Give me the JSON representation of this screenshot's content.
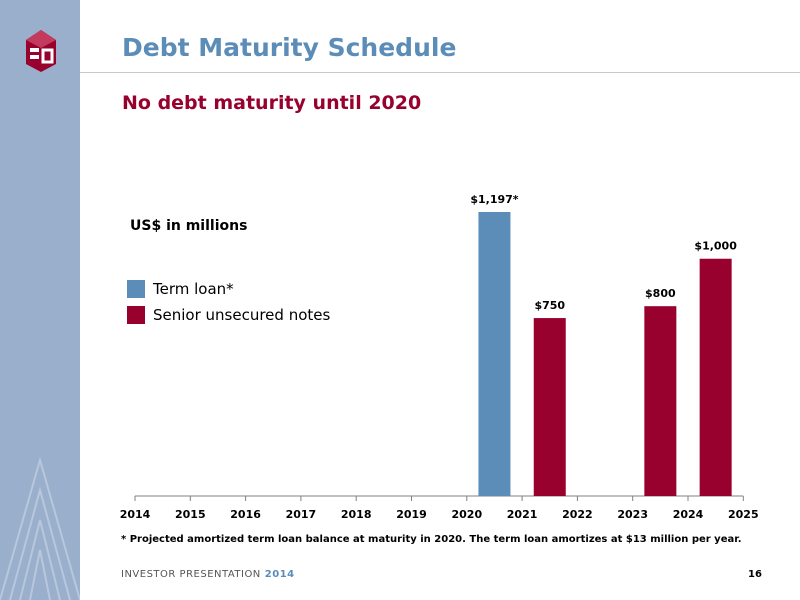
{
  "header": {
    "title": "Debt Maturity Schedule",
    "subtitle": "No debt maturity until 2020"
  },
  "colors": {
    "term_loan": "#5b8db8",
    "senior_notes": "#98002e",
    "sidebar": "#9aafcc"
  },
  "chart_data": {
    "type": "bar",
    "units_label": "US$ in millions",
    "categories": [
      "2014",
      "2015",
      "2016",
      "2017",
      "2018",
      "2019",
      "2020",
      "2021",
      "2022",
      "2023",
      "2024",
      "2025"
    ],
    "ylim": [
      0,
      1197
    ],
    "grid": false,
    "legend_position": "left",
    "legend": [
      {
        "label": "Term loan*",
        "color": "#5b8db8"
      },
      {
        "label": "Senior unsecured notes",
        "color": "#98002e"
      }
    ],
    "series": [
      {
        "name": "Term loan*",
        "color": "#5b8db8",
        "values": [
          0,
          0,
          0,
          0,
          0,
          0,
          1197,
          0,
          0,
          0,
          0,
          0
        ]
      },
      {
        "name": "Senior unsecured notes",
        "color": "#98002e",
        "values": [
          0,
          0,
          0,
          0,
          0,
          0,
          0,
          750,
          0,
          800,
          1000,
          0
        ]
      }
    ],
    "data_labels": [
      {
        "category": "2020",
        "text": "$1,197*"
      },
      {
        "category": "2021",
        "text": "$750"
      },
      {
        "category": "2023",
        "text": "$800"
      },
      {
        "category": "2024",
        "text": "$1,000"
      }
    ]
  },
  "footnote": "* Projected amortized term loan balance at maturity in 2020. The term loan amortizes at $13 million per year.",
  "footer": {
    "label": "INVESTOR PRESENTATION",
    "year": "2014",
    "page": "16"
  }
}
